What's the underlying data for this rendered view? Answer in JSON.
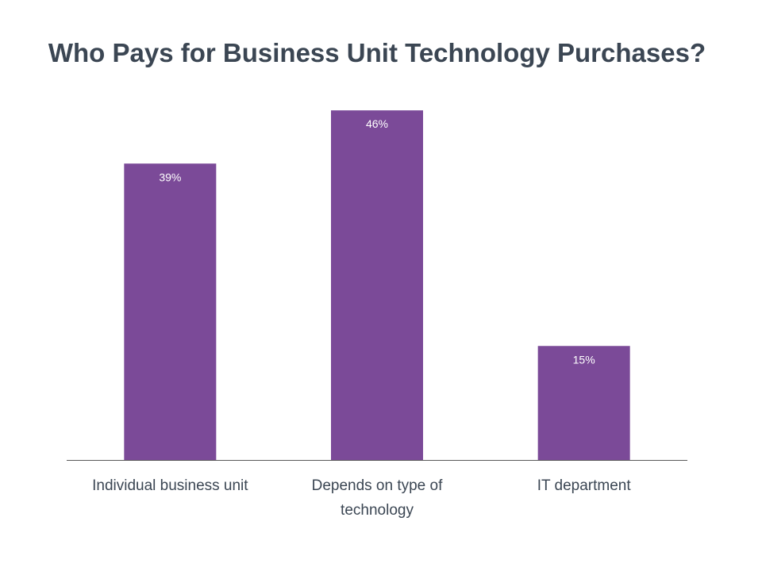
{
  "chart_data": {
    "type": "bar",
    "title": "Who Pays for Business Unit Technology Purchases?",
    "categories": [
      "Individual business unit",
      "Depends on type of technology",
      "IT department"
    ],
    "category_lines": [
      [
        "Individual business unit"
      ],
      [
        "Depends on type of",
        "technology"
      ],
      [
        "IT department"
      ]
    ],
    "values": [
      39,
      46,
      15
    ],
    "data_labels": [
      "39%",
      "46%",
      "15%"
    ],
    "ylim": [
      0,
      48
    ],
    "grid": false,
    "legend": "none",
    "colors": {
      "bar": "#7b4a98",
      "axis": "#595959",
      "title": "#3b4653",
      "text": "#3b4653",
      "bar_label": "#ffffff"
    }
  }
}
